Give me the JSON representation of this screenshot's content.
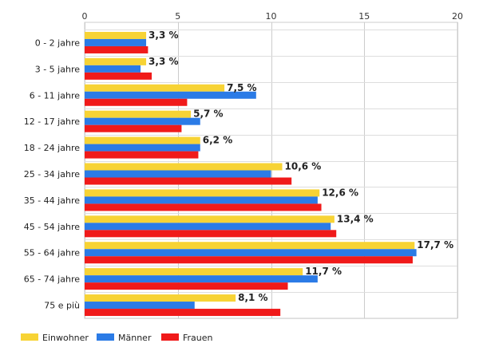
{
  "chart_data": {
    "type": "bar",
    "orientation": "horizontal",
    "categories": [
      "0 - 2 jahre",
      "3 - 5 jahre",
      "6 - 11 jahre",
      "12 - 17 jahre",
      "18 - 24 jahre",
      "25 - 34 jahre",
      "35 - 44 jahre",
      "45 - 54 jahre",
      "55 - 64 jahre",
      "65 - 74 jahre",
      "75 e più"
    ],
    "series": [
      {
        "name": "Einwohner",
        "color": "#f7d335",
        "values": [
          3.3,
          3.3,
          7.5,
          5.7,
          6.2,
          10.6,
          12.6,
          13.4,
          17.7,
          11.7,
          8.1
        ]
      },
      {
        "name": "Männer",
        "color": "#2b7be6",
        "values": [
          3.3,
          3.0,
          9.2,
          6.2,
          6.2,
          10.0,
          12.5,
          13.2,
          17.8,
          12.5,
          5.9
        ]
      },
      {
        "name": "Frauen",
        "color": "#f01a1a",
        "values": [
          3.4,
          3.6,
          5.5,
          5.2,
          6.1,
          11.1,
          12.7,
          13.5,
          17.6,
          10.9,
          10.5
        ]
      }
    ],
    "data_labels": [
      "3,3 %",
      "3,3 %",
      "7,5 %",
      "5,7 %",
      "6,2 %",
      "10,6 %",
      "12,6 %",
      "13,4 %",
      "17,7 %",
      "11,7 %",
      "8,1 %"
    ],
    "xlim": [
      0,
      20
    ],
    "xticks": [
      0,
      5,
      10,
      15,
      20
    ],
    "grid": true,
    "legend_position": "bottom-left",
    "title": "",
    "xlabel": "",
    "ylabel": ""
  }
}
